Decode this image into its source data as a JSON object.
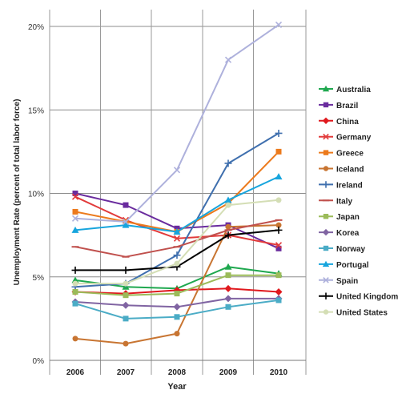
{
  "chart_data": {
    "type": "line",
    "title": "",
    "xlabel": "Year",
    "ylabel": "Unemployment Rate (percent of total labor force)",
    "x": [
      "2006",
      "2007",
      "2008",
      "2009",
      "2010"
    ],
    "ylim": [
      0,
      21
    ],
    "yticks": [
      0,
      5,
      10,
      15,
      20
    ],
    "ytick_labels": [
      "0%",
      "5%",
      "10%",
      "15%",
      "20%"
    ],
    "grid": "horizontal",
    "legend_position": "right",
    "series": [
      {
        "name": "Australia",
        "color": "#1fa84f",
        "marker": "triangle",
        "values": [
          4.8,
          4.4,
          4.3,
          5.6,
          5.2
        ]
      },
      {
        "name": "Brazil",
        "color": "#6a2c9e",
        "marker": "square",
        "values": [
          10.0,
          9.3,
          7.9,
          8.1,
          6.7
        ]
      },
      {
        "name": "China",
        "color": "#e0191e",
        "marker": "diamond",
        "values": [
          4.1,
          4.0,
          4.2,
          4.3,
          4.1
        ]
      },
      {
        "name": "Germany",
        "color": "#e23b3b",
        "marker": "x",
        "values": [
          9.8,
          8.4,
          7.3,
          7.5,
          6.9
        ]
      },
      {
        "name": "Greece",
        "color": "#ec7a1c",
        "marker": "square",
        "values": [
          8.9,
          8.3,
          7.7,
          9.4,
          12.5
        ]
      },
      {
        "name": "Iceland",
        "color": "#c87532",
        "marker": "circle",
        "values": [
          1.3,
          1.0,
          1.6,
          8.0,
          8.1
        ]
      },
      {
        "name": "Ireland",
        "color": "#3f6fae",
        "marker": "plus",
        "values": [
          4.4,
          4.6,
          6.3,
          11.8,
          13.6
        ]
      },
      {
        "name": "Italy",
        "color": "#c0504d",
        "marker": "dash",
        "values": [
          6.8,
          6.2,
          6.8,
          7.8,
          8.4
        ]
      },
      {
        "name": "Japan",
        "color": "#9bbb59",
        "marker": "square",
        "values": [
          4.1,
          3.9,
          4.0,
          5.1,
          5.1
        ]
      },
      {
        "name": "Korea",
        "color": "#8064a2",
        "marker": "diamond",
        "values": [
          3.5,
          3.3,
          3.2,
          3.7,
          3.7
        ]
      },
      {
        "name": "Norway",
        "color": "#4bacc6",
        "marker": "square",
        "values": [
          3.4,
          2.5,
          2.6,
          3.2,
          3.6
        ]
      },
      {
        "name": "Portugal",
        "color": "#17a5dd",
        "marker": "triangle",
        "values": [
          7.8,
          8.1,
          7.7,
          9.6,
          11.0
        ]
      },
      {
        "name": "Spain",
        "color": "#aeb1dc",
        "marker": "x",
        "values": [
          8.5,
          8.3,
          11.4,
          18.0,
          20.1
        ]
      },
      {
        "name": "United Kingdom",
        "color": "#000000",
        "marker": "plus",
        "values": [
          5.4,
          5.4,
          5.6,
          7.5,
          7.8
        ]
      },
      {
        "name": "United States",
        "color": "#d4deb5",
        "marker": "circle",
        "values": [
          4.6,
          4.6,
          5.8,
          9.3,
          9.6
        ]
      }
    ]
  }
}
